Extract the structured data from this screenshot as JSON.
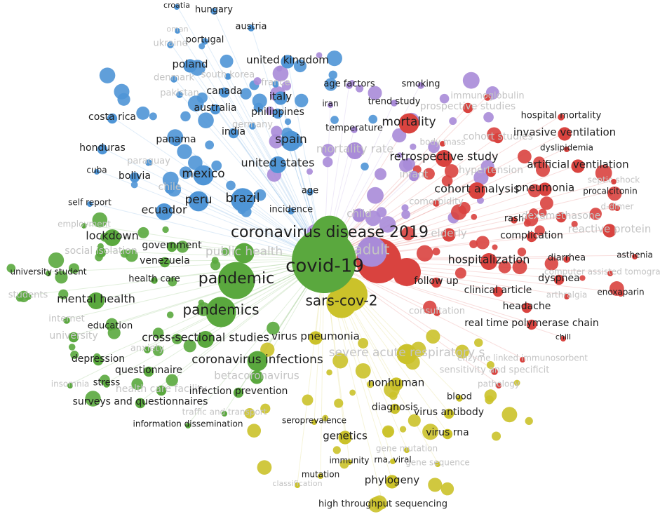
{
  "clusters": [
    {
      "color": "#4f95d6",
      "terms": [
        "croatia",
        "hungary",
        "austria",
        "oman",
        "portugal",
        "ukraine",
        "united kingdom",
        "poland",
        "denmark",
        "south korea",
        "france",
        "pakistan",
        "canada",
        "italy",
        "australia",
        "philippines",
        "costa rica",
        "germany",
        "india",
        "panama",
        "spain",
        "honduras",
        "paraguay",
        "united states",
        "cuba",
        "bolivia",
        "mexico",
        "chile",
        "age",
        "peru",
        "brazil",
        "self report",
        "ecuador",
        "incidence"
      ]
    },
    {
      "color": "#a98bd8",
      "terms": [
        "age factors",
        "smoking",
        "iran",
        "trend study",
        "temperature",
        "mortality rate",
        "infant",
        "child",
        "adult"
      ]
    },
    {
      "color": "#d9433f",
      "terms": [
        "immunoglobulin",
        "prospective studies",
        "hospital mortality",
        "mortality",
        "cohort studies",
        "invasive ventilation",
        "body mass",
        "dyslipidemia",
        "retrospective study",
        "hypertension",
        "artificial ventilation",
        "septic shock",
        "pneumonia",
        "cohort analysis",
        "procalcitonin",
        "comorbidity",
        "rash",
        "dexamethasone",
        "d-dimer",
        "reactive protein",
        "elderly",
        "complication",
        "hospitalization",
        "diarrhea",
        "asthenia",
        "computer assisted tomography",
        "follow up",
        "dyspnea",
        "clinical article",
        "arthralgia",
        "enoxaparin",
        "headache",
        "consultation",
        "real time polymerase chain",
        "chill",
        "enzyme linked immunosorbent",
        "sensitivity and specificit",
        "pathology"
      ]
    },
    {
      "color": "#cbc22a",
      "terms": [
        "sars-cov-2",
        "virus pneumonia",
        "severe acute respiratory s",
        "nonhuman",
        "blood",
        "diagnosis",
        "virus antibody",
        "seroprevalence",
        "genetics",
        "virus rna",
        "gene mutation",
        "immunity",
        "rna, viral",
        "gene sequence",
        "classification",
        "mutation",
        "phylogeny",
        "high throughput sequencing"
      ]
    },
    {
      "color": "#5aa83e",
      "terms": [
        "coronavirus disease 2019",
        "covid-19",
        "public health",
        "employment",
        "lockdown",
        "government",
        "social isolation",
        "venezuela",
        "university student",
        "pandemic",
        "health care",
        "students",
        "mental health",
        "pandemics",
        "internet",
        "education",
        "university",
        "cross-sectional studies",
        "anxiety",
        "coronavirus infections",
        "depression",
        "questionnaire",
        "betacoronavirus",
        "insomnia",
        "stress",
        "health care facility",
        "infection prevention",
        "surveys and questionnaires",
        "traffic and transport",
        "information dissemination"
      ]
    }
  ]
}
